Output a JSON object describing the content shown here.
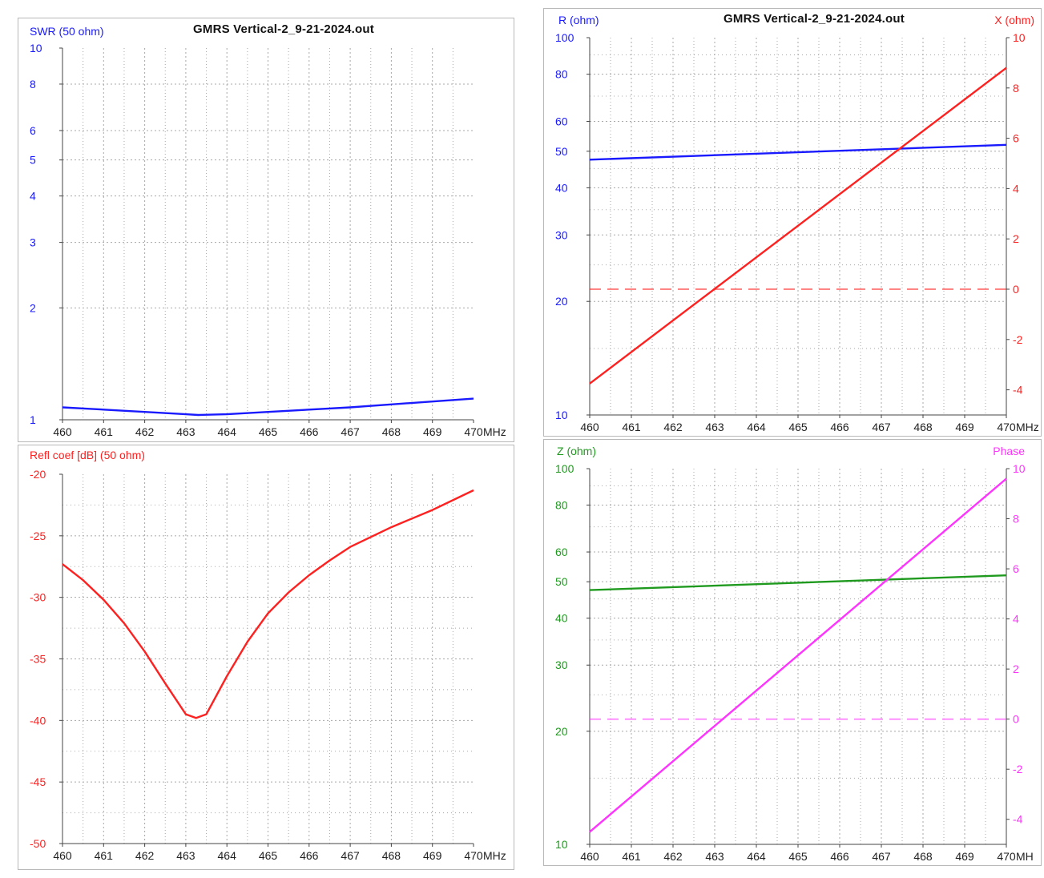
{
  "colors": {
    "swr": "#1a1aff",
    "reactance": "#ff2020",
    "resistance": "#1a1aff",
    "refl": "#ff2020",
    "impedance": "#1f9a1f",
    "phase": "#ff33ff",
    "grid": "#a8a8a8",
    "axis": "#444444"
  },
  "chart_data": [
    {
      "id": "swr",
      "type": "line",
      "title": "GMRS Vertical-2_9-21-2024.out",
      "ylabel": "SWR (50 ohm)",
      "xunit": "MHz",
      "xlim": [
        460,
        470
      ],
      "ylim": [
        1,
        10
      ],
      "yscale": "log",
      "xticks": [
        "460",
        "461",
        "462",
        "463",
        "464",
        "465",
        "466",
        "467",
        "468",
        "469",
        "470"
      ],
      "yticks": [
        "1",
        "2",
        "3",
        "4",
        "5",
        "6",
        "8",
        "10"
      ],
      "grid": true,
      "series": [
        {
          "x": [
            460,
            461,
            462,
            463,
            463.3,
            464,
            465,
            466,
            467,
            468,
            469,
            470
          ],
          "values": [
            1.08,
            1.065,
            1.05,
            1.035,
            1.03,
            1.035,
            1.05,
            1.065,
            1.08,
            1.1,
            1.12,
            1.14
          ]
        }
      ]
    },
    {
      "id": "rx",
      "type": "line",
      "title": "GMRS Vertical-2_9-21-2024.out",
      "ylabel": "R (ohm)",
      "y2label": "X (ohm)",
      "xunit": "MHz",
      "xlim": [
        460,
        470
      ],
      "ylim": [
        10,
        100
      ],
      "yscale": "log",
      "y2lim": [
        -5,
        10
      ],
      "xticks": [
        "460",
        "461",
        "462",
        "463",
        "464",
        "465",
        "466",
        "467",
        "468",
        "469",
        "470"
      ],
      "yticks": [
        "10",
        "20",
        "30",
        "40",
        "50",
        "60",
        "80",
        "100"
      ],
      "y2ticks": [
        "-4",
        "-2",
        "0",
        "2",
        "4",
        "6",
        "8",
        "10"
      ],
      "grid": true,
      "series": [
        {
          "axis": "left",
          "x": [
            460,
            470
          ],
          "values": [
            47.5,
            52
          ]
        },
        {
          "axis": "right",
          "x": [
            460,
            470
          ],
          "values": [
            -3.75,
            8.8
          ]
        },
        {
          "axis": "right",
          "style": "dashed",
          "x": [
            460,
            470
          ],
          "values": [
            0,
            0
          ]
        }
      ]
    },
    {
      "id": "refl",
      "type": "line",
      "ylabel": "Refl coef [dB] (50 ohm)",
      "xunit": "MHz",
      "xlim": [
        460,
        470
      ],
      "ylim": [
        -50,
        -20
      ],
      "yticks": [
        "-50",
        "-45",
        "-40",
        "-35",
        "-30",
        "-25",
        "-20"
      ],
      "xticks": [
        "460",
        "461",
        "462",
        "463",
        "464",
        "465",
        "466",
        "467",
        "468",
        "469",
        "470"
      ],
      "grid": true,
      "series": [
        {
          "x": [
            460,
            460.5,
            461,
            461.5,
            462,
            462.5,
            463,
            463.25,
            463.5,
            464,
            464.5,
            465,
            465.5,
            466,
            466.5,
            467,
            468,
            469,
            470
          ],
          "values": [
            -27.3,
            -28.6,
            -30.2,
            -32.1,
            -34.4,
            -37,
            -39.5,
            -39.8,
            -39.5,
            -36.4,
            -33.6,
            -31.3,
            -29.6,
            -28.2,
            -27,
            -25.9,
            -24.3,
            -22.9,
            -21.3
          ]
        }
      ]
    },
    {
      "id": "zp",
      "type": "line",
      "ylabel": "Z (ohm)",
      "y2label": "Phase",
      "xunit": "MH",
      "xlim": [
        460,
        470
      ],
      "ylim": [
        10,
        100
      ],
      "yscale": "log",
      "y2lim": [
        -5,
        10
      ],
      "xticks": [
        "460",
        "461",
        "462",
        "463",
        "464",
        "465",
        "466",
        "467",
        "468",
        "469",
        "470"
      ],
      "yticks": [
        "10",
        "20",
        "30",
        "40",
        "50",
        "60",
        "80",
        "100"
      ],
      "y2ticks": [
        "-4",
        "-2",
        "0",
        "2",
        "4",
        "6",
        "8",
        "10"
      ],
      "grid": true,
      "series": [
        {
          "axis": "left",
          "x": [
            460,
            470
          ],
          "values": [
            47.5,
            52
          ]
        },
        {
          "axis": "right",
          "x": [
            460,
            470
          ],
          "values": [
            -4.5,
            9.6
          ]
        },
        {
          "axis": "right",
          "style": "dashed",
          "x": [
            460,
            470
          ],
          "values": [
            0,
            0
          ]
        }
      ]
    }
  ]
}
